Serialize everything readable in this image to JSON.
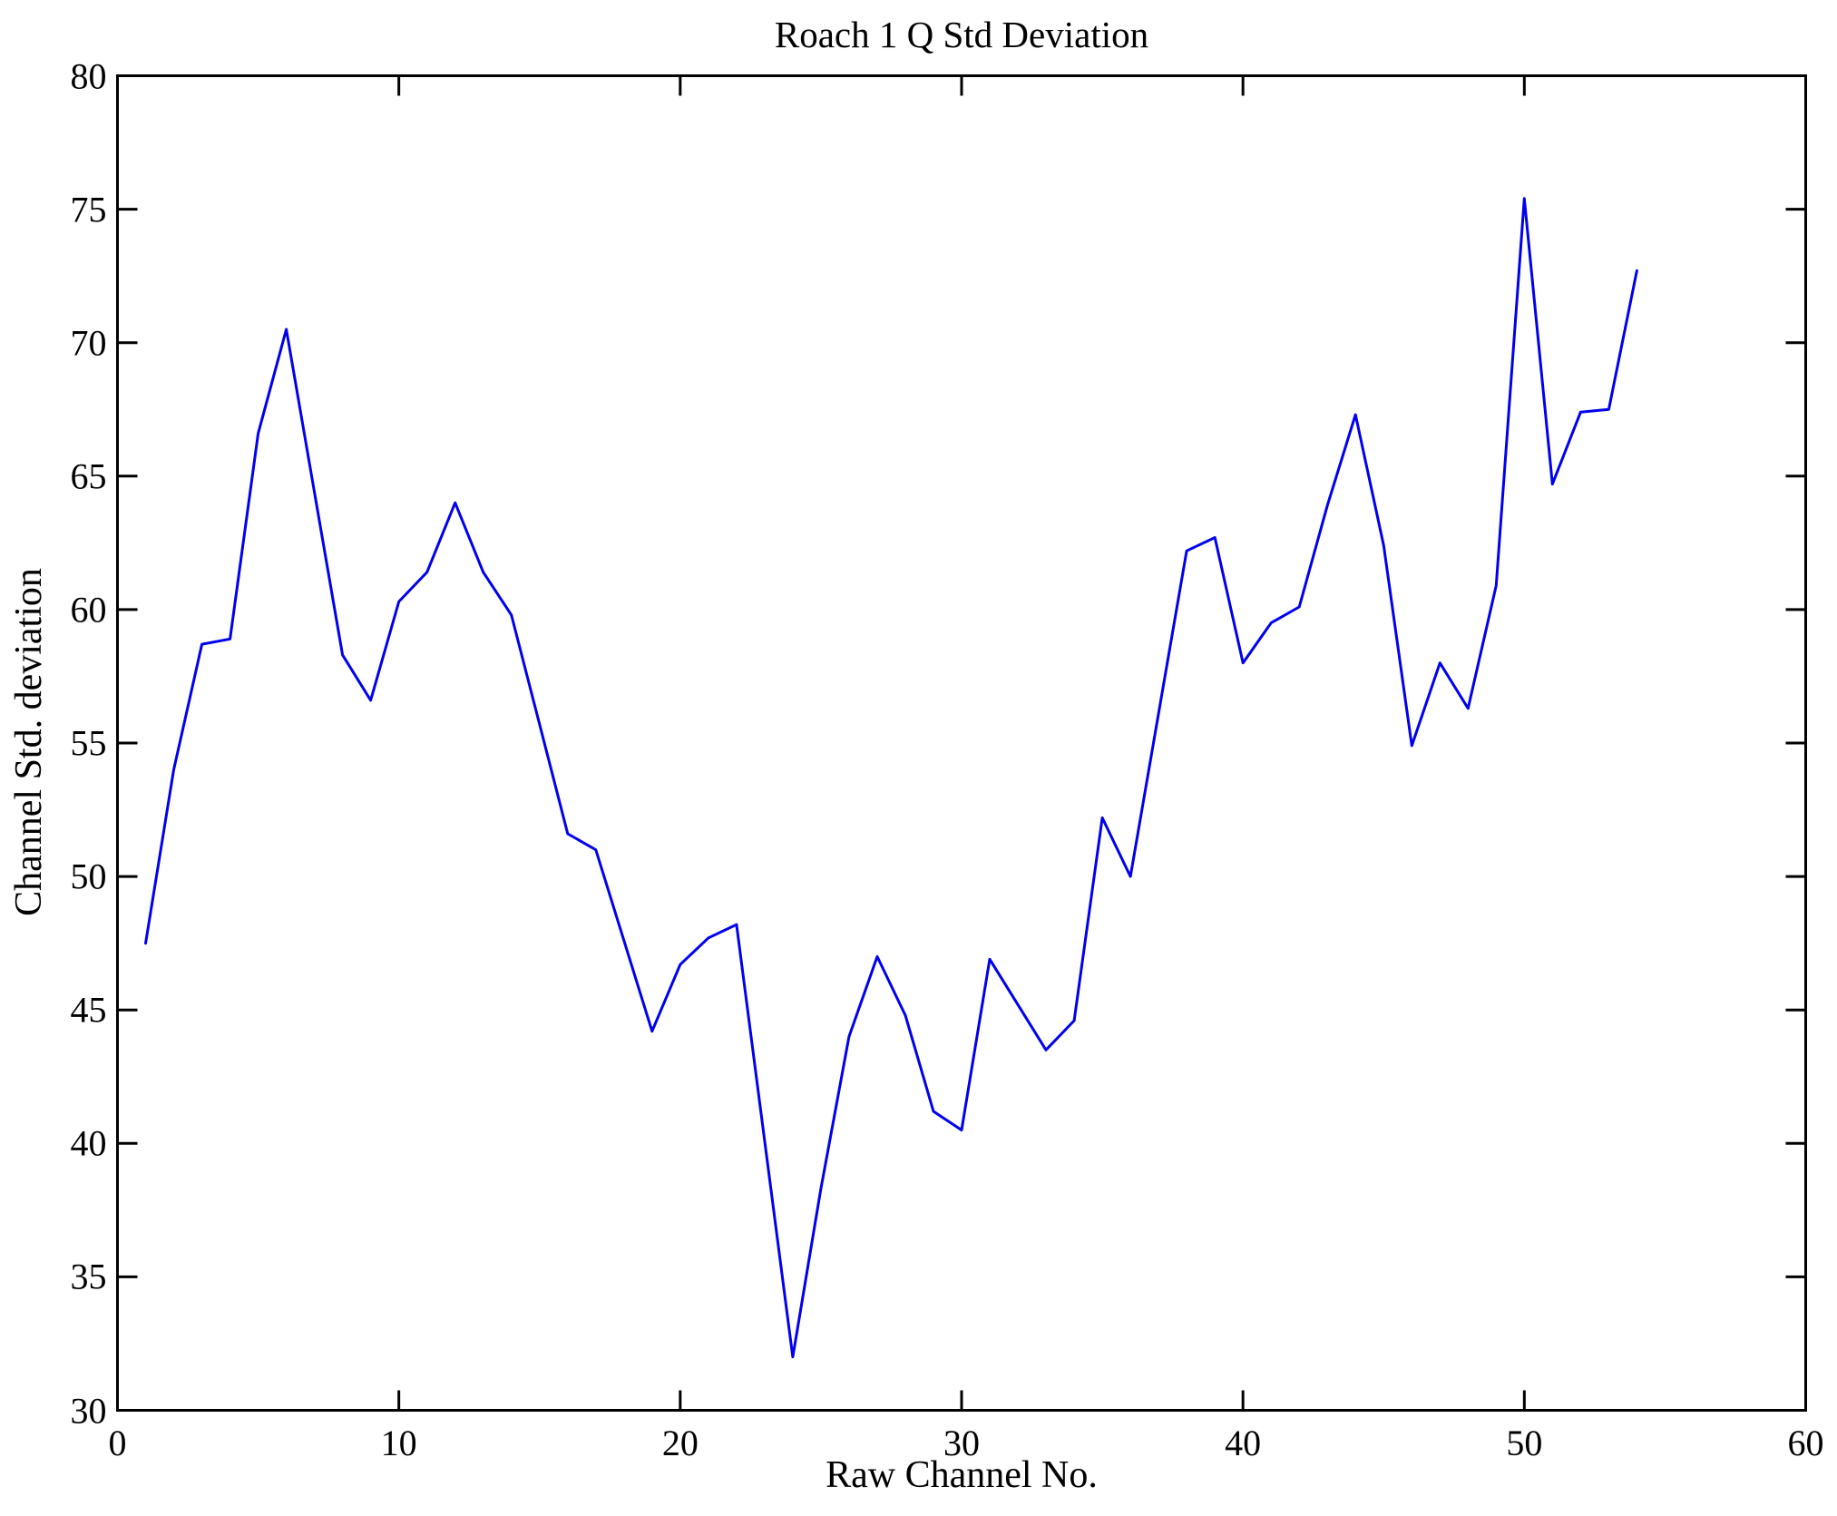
{
  "page": {
    "background_color": "#ffffff",
    "text_color": "#000000"
  },
  "chart_data": {
    "type": "line",
    "title": "Roach 1 Q Std Deviation",
    "xlabel": "Raw Channel No.",
    "ylabel": "Channel Std. deviation",
    "xlim": [
      0,
      60
    ],
    "ylim": [
      30,
      80
    ],
    "xticks": [
      0,
      10,
      20,
      30,
      40,
      50,
      60
    ],
    "yticks": [
      30,
      35,
      40,
      45,
      50,
      55,
      60,
      65,
      70,
      75,
      80
    ],
    "grid": false,
    "legend_position": "none",
    "line_color": "#0000EE",
    "axis_color": "#000000",
    "series_name": "Channel Std. deviation",
    "x": [
      1,
      2,
      3,
      4,
      5,
      6,
      7,
      8,
      9,
      10,
      11,
      12,
      13,
      14,
      15,
      16,
      17,
      18,
      19,
      20,
      21,
      22,
      23,
      24,
      25,
      26,
      27,
      28,
      29,
      30,
      31,
      32,
      33,
      34,
      35,
      36,
      37,
      38,
      39,
      40,
      41,
      42,
      43,
      44,
      45,
      46,
      47,
      48,
      49,
      50,
      51,
      52,
      53,
      54
    ],
    "values": [
      47.5,
      54.0,
      58.7,
      58.9,
      66.6,
      70.5,
      64.4,
      58.3,
      56.6,
      60.3,
      61.4,
      64.0,
      61.4,
      59.8,
      55.7,
      51.6,
      51.0,
      47.6,
      44.2,
      46.7,
      47.7,
      48.2,
      40.1,
      32.0,
      38.3,
      44.0,
      47.0,
      44.8,
      41.2,
      40.5,
      46.9,
      45.2,
      43.5,
      44.6,
      52.2,
      50.0,
      56.1,
      62.2,
      62.7,
      58.0,
      59.5,
      60.1,
      63.9,
      67.3,
      62.4,
      54.9,
      58.0,
      56.3,
      60.9,
      75.4,
      64.7,
      67.4,
      67.5,
      72.7
    ]
  }
}
